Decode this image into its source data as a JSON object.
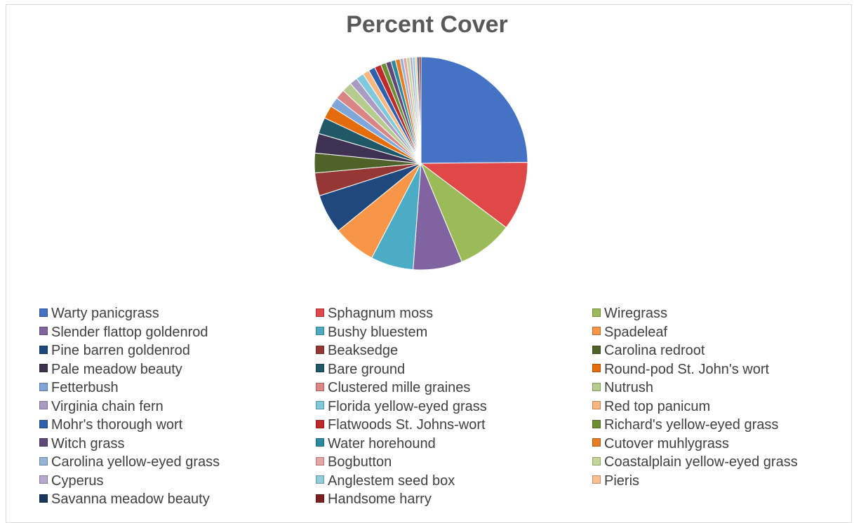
{
  "chart_data": {
    "type": "pie",
    "title": "Percent Cover",
    "legend_position": "bottom",
    "categories": [
      "Warty panicgrass",
      "Sphagnum moss",
      "Wiregrass",
      "Slender flattop goldenrod",
      "Bushy bluestem",
      "Spadeleaf",
      "Pine barren goldenrod",
      "Beaksedge",
      "Carolina redroot",
      "Pale meadow beauty",
      "Bare ground",
      "Round-pod St. John's wort",
      "Fetterbush",
      "Clustered mille graines",
      "Nutrush",
      "Virginia chain fern",
      "Florida yellow-eyed grass",
      "Red top panicum",
      "Mohr's thorough wort",
      "Flatwoods St. Johns-wort",
      "Richard's yellow-eyed grass",
      "Witch grass",
      "Water horehound",
      "Cutover muhlygrass",
      "Carolina yellow-eyed grass",
      "Bogbutton",
      "Coastalplain yellow-eyed grass",
      "Cyperus",
      "Anglestem seed box",
      "Pieris",
      "Savanna meadow beauty",
      "Handsome harry"
    ],
    "values": [
      25.0,
      10.5,
      8.5,
      7.5,
      6.5,
      6.5,
      6.0,
      3.5,
      3.0,
      3.0,
      2.5,
      2.0,
      1.5,
      1.5,
      1.5,
      1.2,
      1.2,
      1.0,
      1.0,
      1.0,
      0.8,
      0.8,
      0.7,
      0.7,
      0.5,
      0.5,
      0.5,
      0.4,
      0.4,
      0.3,
      0.3,
      0.3
    ],
    "colors": [
      "#4472c4",
      "#e04848",
      "#9bbb59",
      "#8064a2",
      "#4bacc6",
      "#f79646",
      "#1f497d",
      "#953735",
      "#4f6228",
      "#3f3151",
      "#205867",
      "#e46c0a",
      "#7ea6d8",
      "#d98585",
      "#b6cc8e",
      "#a99bc2",
      "#7fc9dc",
      "#f9b67e",
      "#2e60ad",
      "#c0282c",
      "#6d8f34",
      "#5f497a",
      "#2c8aa0",
      "#e87c20",
      "#95b3d7",
      "#e6a6a6",
      "#c4d79b",
      "#b8a8d0",
      "#92cddc",
      "#fac090",
      "#17375e",
      "#7f2020"
    ]
  }
}
